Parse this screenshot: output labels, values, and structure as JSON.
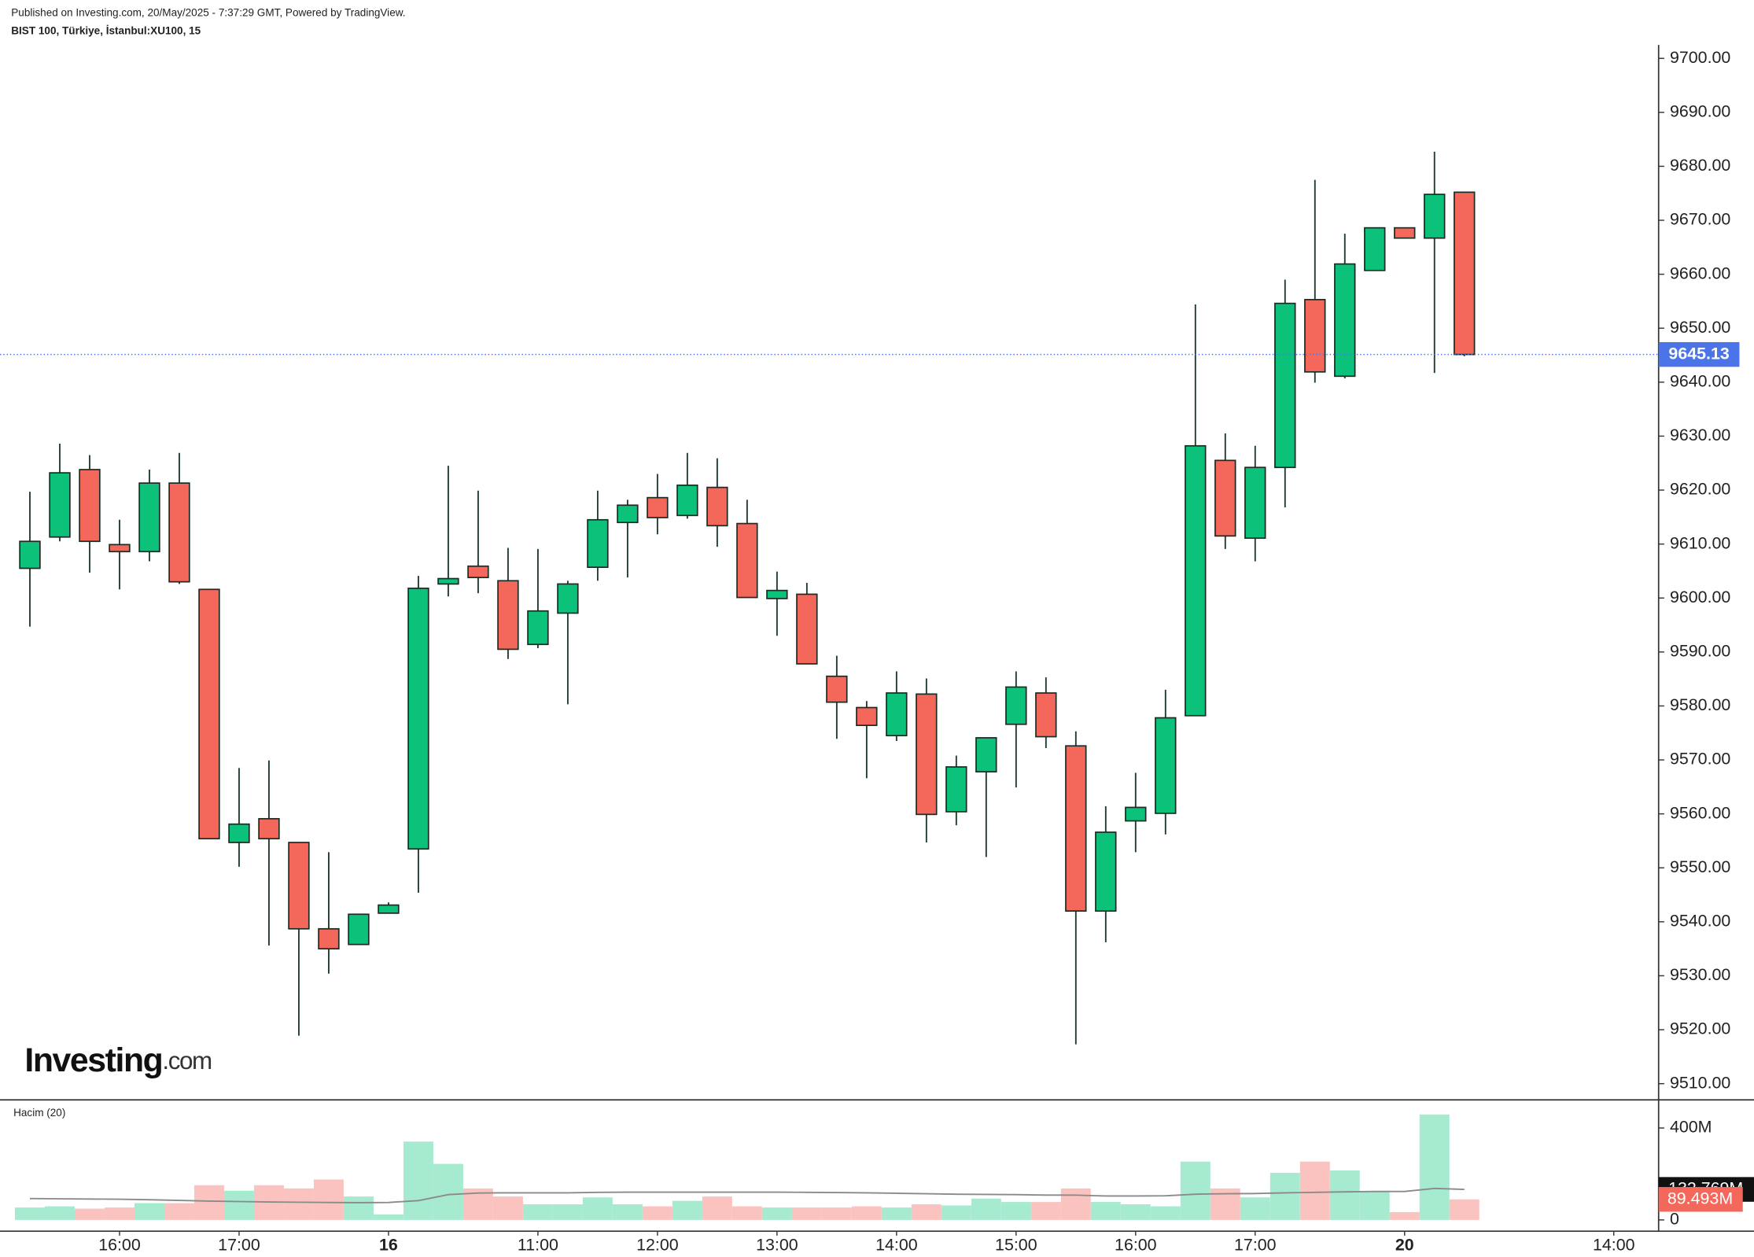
{
  "chart_data": {
    "type": "candlestick",
    "published": "Published on Investing.com, 20/May/2025 - 7:37:29 GMT, Powered by TradingView.",
    "title": "BIST 100, Türkiye, İstanbul:XU100, 15",
    "brand": [
      "Investing",
      ".com"
    ],
    "up_color": "#0cc27a",
    "down_color": "#f4675b",
    "last_price_color": "#4a74e8",
    "xlim": [
      -1,
      54.5
    ],
    "xticks": [
      {
        "value": 3,
        "label": "16:00"
      },
      {
        "value": 7,
        "label": "17:00"
      },
      {
        "value": 12,
        "label": "16"
      },
      {
        "value": 17,
        "label": "11:00"
      },
      {
        "value": 21,
        "label": "12:00"
      },
      {
        "value": 25,
        "label": "13:00"
      },
      {
        "value": 29,
        "label": "14:00"
      },
      {
        "value": 33,
        "label": "15:00"
      },
      {
        "value": 37,
        "label": "16:00"
      },
      {
        "value": 41,
        "label": "17:00"
      },
      {
        "value": 46,
        "label": "20"
      },
      {
        "value": 53,
        "label": "14:00"
      }
    ],
    "ylim": [
      9507,
      9702.5
    ],
    "yticks": [
      {
        "value": 9510,
        "label": "9510.00"
      },
      {
        "value": 9520,
        "label": "9520.00"
      },
      {
        "value": 9530,
        "label": "9530.00"
      },
      {
        "value": 9540,
        "label": "9540.00"
      },
      {
        "value": 9550,
        "label": "9550.00"
      },
      {
        "value": 9560,
        "label": "9560.00"
      },
      {
        "value": 9570,
        "label": "9570.00"
      },
      {
        "value": 9580,
        "label": "9580.00"
      },
      {
        "value": 9590,
        "label": "9590.00"
      },
      {
        "value": 9600,
        "label": "9600.00"
      },
      {
        "value": 9610,
        "label": "9610.00"
      },
      {
        "value": 9620,
        "label": "9620.00"
      },
      {
        "value": 9630,
        "label": "9630.00"
      },
      {
        "value": 9640,
        "label": "9640.00"
      },
      {
        "value": 9650,
        "label": "9650.00"
      },
      {
        "value": 9660,
        "label": "9660.00"
      },
      {
        "value": 9670,
        "label": "9670.00"
      },
      {
        "value": 9680,
        "label": "9680.00"
      },
      {
        "value": 9690,
        "label": "9690.00"
      },
      {
        "value": 9700,
        "label": "9700.00"
      }
    ],
    "open": [
      9605.5,
      9611.3,
      9623.8,
      9609.9,
      9608.6,
      9621.3,
      9601.6,
      9554.7,
      9559.1,
      9554.7,
      9538.7,
      9535.8,
      9541.6,
      9553.5,
      9602.6,
      9605.9,
      9603.2,
      9591.4,
      9597.2,
      9605.7,
      9614.0,
      9618.6,
      9615.3,
      9620.5,
      9613.8,
      9599.9,
      9600.7,
      9585.5,
      9579.7,
      9574.5,
      9582.2,
      9560.4,
      9567.8,
      9576.6,
      9582.4,
      9572.6,
      9542.0,
      9558.7,
      9560.1,
      9578.2,
      9625.5,
      9611.1,
      9624.2,
      9655.3,
      9641.1,
      9660.7,
      9668.6,
      9666.7,
      9675.2
    ],
    "high": [
      9619.7,
      9628.6,
      9626.5,
      9614.5,
      9623.8,
      9626.9,
      9601.6,
      9568.5,
      9569.9,
      9554.7,
      9552.9,
      9541.4,
      9543.6,
      9604.1,
      9624.5,
      9619.9,
      9609.3,
      9609.1,
      9603.2,
      9619.9,
      9618.2,
      9623.0,
      9626.9,
      9625.9,
      9618.2,
      9604.9,
      9602.8,
      9589.3,
      9580.9,
      9586.4,
      9585.1,
      9570.8,
      9574.1,
      9586.4,
      9585.3,
      9575.3,
      9561.4,
      9567.6,
      9583.0,
      9654.4,
      9630.5,
      9628.2,
      9659.0,
      9677.5,
      9667.5,
      9668.6,
      9668.6,
      9682.7,
      9675.2
    ],
    "low": [
      9594.7,
      9610.5,
      9604.7,
      9601.6,
      9606.8,
      9602.6,
      9555.4,
      9550.2,
      9535.6,
      9518.9,
      9530.4,
      9535.8,
      9541.6,
      9545.4,
      9600.3,
      9600.9,
      9588.7,
      9590.7,
      9580.3,
      9603.2,
      9603.8,
      9611.8,
      9614.7,
      9609.5,
      9600.1,
      9593.0,
      9587.8,
      9573.9,
      9566.6,
      9573.5,
      9554.7,
      9557.9,
      9552.0,
      9564.9,
      9572.2,
      9517.3,
      9536.2,
      9552.9,
      9556.2,
      9578.2,
      9609.1,
      9606.8,
      9616.8,
      9639.9,
      9640.7,
      9660.7,
      9666.7,
      9641.7,
      9644.8
    ],
    "close": [
      9610.5,
      9623.2,
      9610.5,
      9608.6,
      9621.3,
      9603.0,
      9555.4,
      9558.1,
      9555.4,
      9538.7,
      9535.0,
      9541.4,
      9543.1,
      9601.8,
      9603.6,
      9603.8,
      9590.5,
      9597.6,
      9602.6,
      9614.5,
      9617.2,
      9614.9,
      9620.9,
      9613.4,
      9600.1,
      9601.4,
      9587.8,
      9580.7,
      9576.4,
      9582.4,
      9559.9,
      9568.7,
      9574.1,
      9583.5,
      9574.3,
      9542.0,
      9556.6,
      9561.2,
      9577.8,
      9628.2,
      9611.5,
      9624.2,
      9654.6,
      9641.9,
      9661.9,
      9668.6,
      9666.7,
      9674.8,
      9645.13
    ],
    "volume": {
      "name": "Hacim (20)",
      "up_color": "#a6ead0",
      "down_color": "#fbc3bf",
      "label_color": "#f4675b",
      "ylim": [
        -49,
        498
      ],
      "yticks": [
        0,
        {
          "value": 400,
          "label": "400M"
        }
      ],
      "values": [
        54,
        59,
        49,
        54,
        73,
        73,
        151,
        127,
        151,
        137,
        176,
        102,
        24,
        341,
        244,
        137,
        102,
        68,
        68,
        98,
        68,
        59,
        83,
        102,
        59,
        54,
        54,
        54,
        59,
        54,
        68,
        63,
        93,
        78,
        78,
        137,
        78,
        68,
        59,
        254,
        137,
        98,
        205,
        254,
        215,
        122,
        34,
        459,
        89.493
      ],
      "last_label": "89.493M"
    },
    "volume_ma": {
      "color": "#8a8a8a",
      "label_color": "#111111",
      "values": [
        93,
        92,
        91,
        90,
        88,
        85,
        82,
        80,
        78,
        77,
        76,
        75,
        76,
        84,
        110,
        117,
        118,
        118,
        118,
        120,
        121,
        121,
        121,
        121,
        121,
        121,
        120,
        119,
        118,
        116,
        114,
        112,
        111,
        110,
        108,
        108,
        104,
        104,
        105,
        112,
        114,
        115,
        118,
        120,
        122,
        124,
        124,
        137,
        132.769
      ],
      "last_label": "132.769M"
    }
  }
}
